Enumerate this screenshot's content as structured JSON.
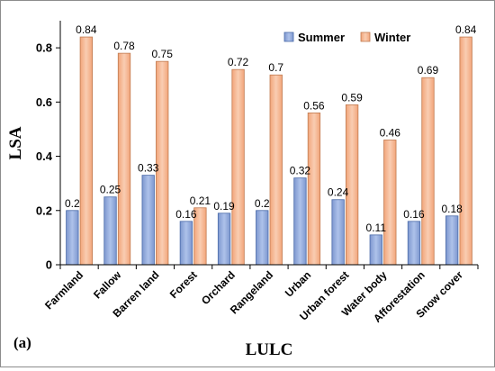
{
  "panel_label": "(a)",
  "chart_data": {
    "type": "bar",
    "title": "",
    "xlabel": "LULC",
    "ylabel": "LSA",
    "ylim": [
      0,
      0.9
    ],
    "yticks": [
      0,
      0.2,
      0.4,
      0.6,
      0.8
    ],
    "ytick_labels": [
      "0",
      "0.2",
      "0.4",
      "0.6",
      "0.8"
    ],
    "grid": false,
    "legend_position": "top-right",
    "categories": [
      "Farmland",
      "Fallow",
      "Barren land",
      "Forest",
      "Orchard",
      "Rangeland",
      "Urban",
      "Urban forest",
      "Water body",
      "Afforestation",
      "Snow cover"
    ],
    "series": [
      {
        "name": "Summer",
        "color": "#8ea9db",
        "values": [
          0.2,
          0.25,
          0.33,
          0.16,
          0.19,
          0.2,
          0.32,
          0.24,
          0.11,
          0.16,
          0.18
        ],
        "labels": [
          "0.2",
          "0.25",
          "0.33",
          "0.16",
          "0.19",
          "0.2",
          "0.32",
          "0.24",
          "0.11",
          "0.16",
          "0.18"
        ]
      },
      {
        "name": "Winter",
        "color": "#f4b183",
        "values": [
          0.84,
          0.78,
          0.75,
          0.21,
          0.72,
          0.7,
          0.56,
          0.59,
          0.46,
          0.69,
          0.84
        ],
        "labels": [
          "0.84",
          "0.78",
          "0.75",
          "0.21",
          "0.72",
          "0.7",
          "0.56",
          "0.59",
          "0.46",
          "0.69",
          "0.84"
        ]
      }
    ]
  }
}
